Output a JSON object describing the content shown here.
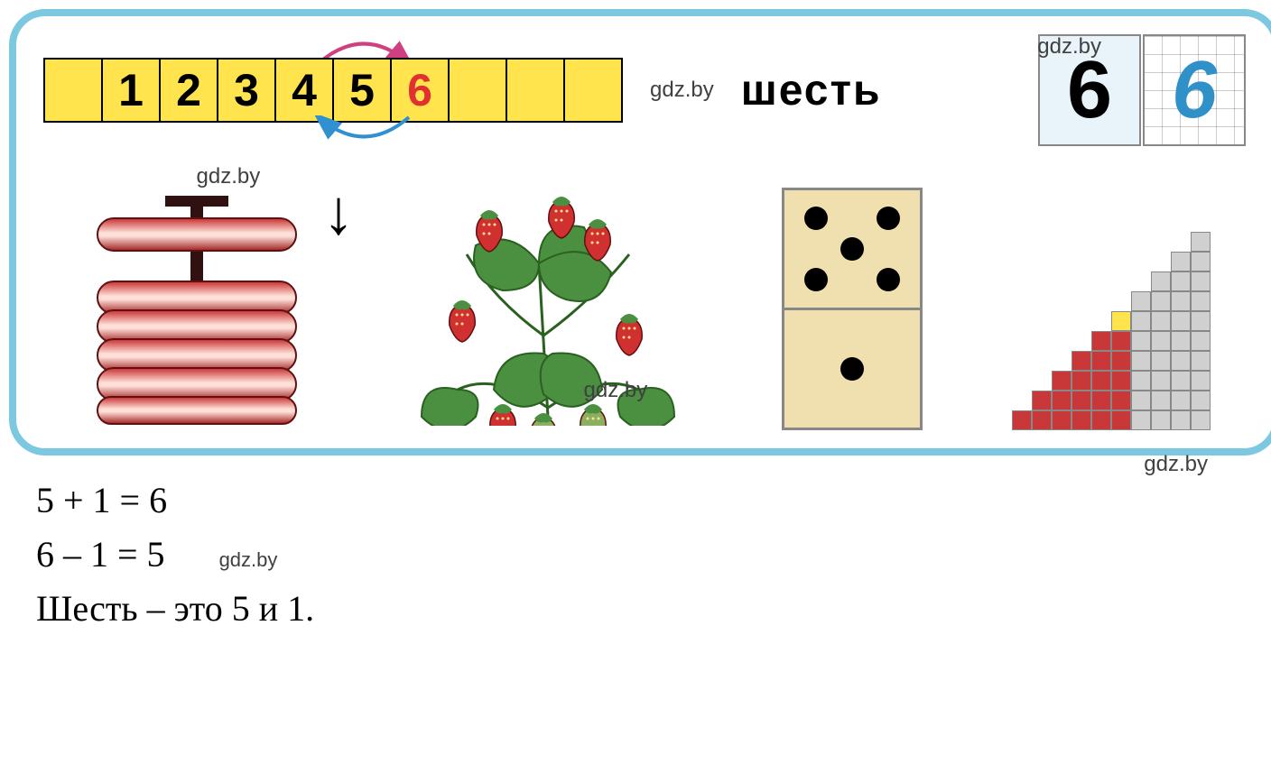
{
  "strip": {
    "cells": [
      "",
      "1",
      "2",
      "3",
      "4",
      "5",
      "6",
      "",
      "",
      ""
    ],
    "highlight_index": 6,
    "bg_color": "#ffe44d",
    "highlight_color": "#e03030"
  },
  "arc": {
    "top_color": "#d04080",
    "bottom_color": "#3090d0"
  },
  "word": "шесть",
  "digit_boxes": {
    "print": "6",
    "script": "6",
    "print_bg": "#e8f4fa",
    "script_color": "#3090c8"
  },
  "arrow_down": "↓",
  "rings": {
    "count": 6,
    "color_light": "#f07060",
    "color_dark": "#a02020"
  },
  "strawberries": {
    "count": 6,
    "berry_color": "#d03030",
    "leaf_color": "#4a9040"
  },
  "domino": {
    "top_dots": 5,
    "bottom_dots": 1,
    "bg": "#f0e0b0"
  },
  "staircase": {
    "rows": 10,
    "red_cols": 6,
    "grey_cols": 4,
    "yellow_cell": {
      "col": 6,
      "row": 6
    },
    "red_color": "#c83838",
    "grey_color": "#d0d0d0",
    "yellow_color": "#ffe44d"
  },
  "equations": {
    "line1": "5 + 1 = 6",
    "line2": "6 – 1 = 5",
    "line3": "Шесть – это 5 и 1."
  },
  "watermark": "gdz.by"
}
